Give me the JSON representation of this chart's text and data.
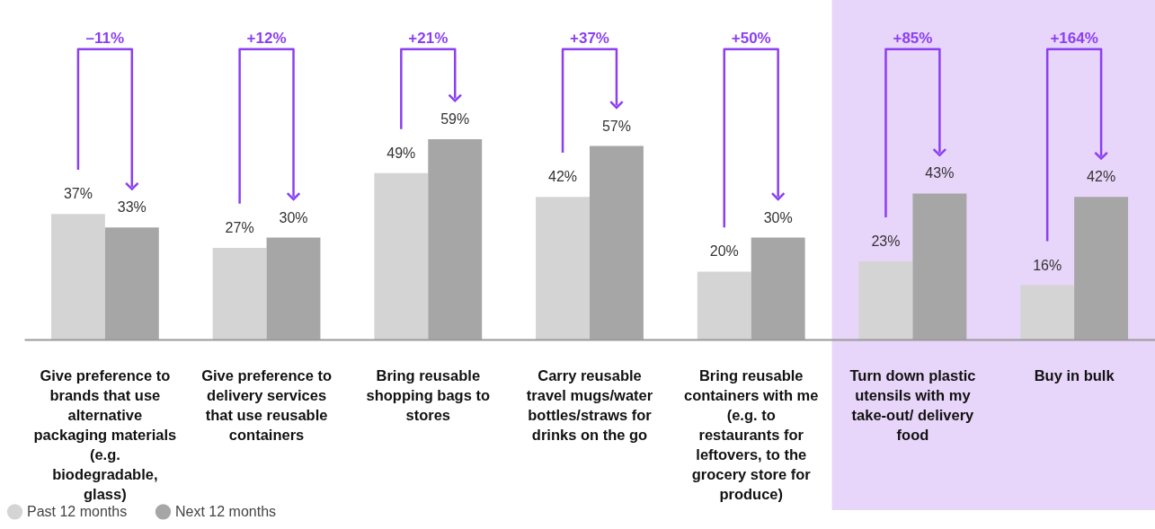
{
  "chart_data": {
    "type": "bar",
    "categories": [
      "Give preference to brands that use alternative packaging materials (e.g. biodegradable, glass)",
      "Give preference to delivery services that use reusable containers",
      "Bring reusable shopping bags to stores",
      "Carry reusable travel mugs/water bottles/straws for drinks on the go",
      "Bring reusable containers with me (e.g. to restaurants for leftovers, to the grocery store for produce)",
      "Turn down plastic utensils with my take-out/ delivery food",
      "Buy in bulk"
    ],
    "series": [
      {
        "name": "Past 12 months",
        "color": "#d4d4d4",
        "values": [
          37,
          27,
          49,
          42,
          20,
          23,
          16
        ],
        "value_labels": [
          "37%",
          "27%",
          "49%",
          "42%",
          "20%",
          "23%",
          "16%"
        ]
      },
      {
        "name": "Next 12 months",
        "color": "#a6a6a6",
        "values": [
          33,
          30,
          59,
          57,
          30,
          43,
          42
        ],
        "value_labels": [
          "33%",
          "30%",
          "59%",
          "57%",
          "30%",
          "43%",
          "42%"
        ]
      }
    ],
    "ylim": [
      0,
      100
    ],
    "annotations": [
      "–11%",
      "+12%",
      "+21%",
      "+37%",
      "+50%",
      "+85%",
      "+164%"
    ],
    "bands": [
      {
        "axis": "x",
        "from": "Turn down plastic utensils with my take-out/ delivery food",
        "to": "Buy in bulk",
        "color": "#e8d5fa"
      }
    ],
    "legend": "bottom left",
    "grid": false
  }
}
